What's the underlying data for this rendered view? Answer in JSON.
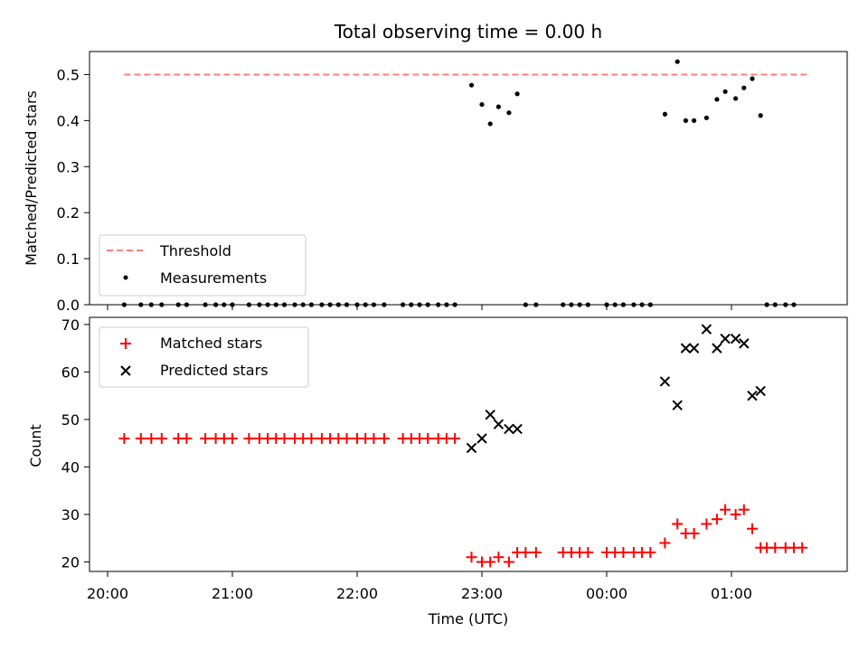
{
  "chart_data": [
    {
      "type": "scatter",
      "title": "Total observing time = 0.00 h",
      "xlabel": "",
      "ylabel": "Matched/Predicted stars",
      "ylim": [
        0,
        0.55
      ],
      "yticks": [
        "0.0",
        "0.1",
        "0.2",
        "0.3",
        "0.4",
        "0.5"
      ],
      "legend_position": "lower-left",
      "grid": false,
      "series": [
        {
          "name": "Threshold",
          "style": "dashed-line",
          "color": "#ff7f7f",
          "points": [
            [
              "20:08",
              0.5
            ],
            [
              "01:38",
              0.5
            ]
          ]
        },
        {
          "name": "Measurements",
          "style": "dot",
          "color": "#000000",
          "points": [
            [
              "20:08",
              0.0
            ],
            [
              "20:16",
              0.0
            ],
            [
              "20:21",
              0.0
            ],
            [
              "20:26",
              0.0
            ],
            [
              "20:34",
              0.0
            ],
            [
              "20:38",
              0.0
            ],
            [
              "20:47",
              0.0
            ],
            [
              "20:52",
              0.0
            ],
            [
              "20:56",
              0.0
            ],
            [
              "21:00",
              0.0
            ],
            [
              "21:08",
              0.0
            ],
            [
              "21:13",
              0.0
            ],
            [
              "21:17",
              0.0
            ],
            [
              "21:21",
              0.0
            ],
            [
              "21:25",
              0.0
            ],
            [
              "21:30",
              0.0
            ],
            [
              "21:34",
              0.0
            ],
            [
              "21:38",
              0.0
            ],
            [
              "21:43",
              0.0
            ],
            [
              "21:47",
              0.0
            ],
            [
              "21:51",
              0.0
            ],
            [
              "21:55",
              0.0
            ],
            [
              "22:00",
              0.0
            ],
            [
              "22:04",
              0.0
            ],
            [
              "22:08",
              0.0
            ],
            [
              "22:13",
              0.0
            ],
            [
              "22:22",
              0.0
            ],
            [
              "22:26",
              0.0
            ],
            [
              "22:30",
              0.0
            ],
            [
              "22:34",
              0.0
            ],
            [
              "22:39",
              0.0
            ],
            [
              "22:43",
              0.0
            ],
            [
              "22:47",
              0.0
            ],
            [
              "22:55",
              0.477
            ],
            [
              "23:00",
              0.435
            ],
            [
              "23:04",
              0.393
            ],
            [
              "23:08",
              0.43
            ],
            [
              "23:13",
              0.417
            ],
            [
              "23:17",
              0.458
            ],
            [
              "23:21",
              0.0
            ],
            [
              "23:26",
              0.0
            ],
            [
              "23:39",
              0.0
            ],
            [
              "23:43",
              0.0
            ],
            [
              "23:47",
              0.0
            ],
            [
              "23:51",
              0.0
            ],
            [
              "00:00",
              0.0
            ],
            [
              "00:04",
              0.0
            ],
            [
              "00:08",
              0.0
            ],
            [
              "00:13",
              0.0
            ],
            [
              "00:17",
              0.0
            ],
            [
              "00:21",
              0.0
            ],
            [
              "00:28",
              0.414
            ],
            [
              "00:34",
              0.528
            ],
            [
              "00:38",
              0.4
            ],
            [
              "00:42",
              0.4
            ],
            [
              "00:48",
              0.406
            ],
            [
              "00:53",
              0.446
            ],
            [
              "00:57",
              0.463
            ],
            [
              "01:02",
              0.448
            ],
            [
              "01:06",
              0.471
            ],
            [
              "01:10",
              0.491
            ],
            [
              "01:14",
              0.411
            ],
            [
              "01:17",
              0.0
            ],
            [
              "01:21",
              0.0
            ],
            [
              "01:26",
              0.0
            ],
            [
              "01:30",
              0.0
            ]
          ]
        }
      ]
    },
    {
      "type": "scatter",
      "title": "",
      "xlabel": "Time (UTC)",
      "ylabel": "Count",
      "ylim": [
        18,
        71.5
      ],
      "yticks": [
        "20",
        "30",
        "40",
        "50",
        "60",
        "70"
      ],
      "xticks": [
        "20:00",
        "21:00",
        "22:00",
        "23:00",
        "00:00",
        "01:00"
      ],
      "legend_position": "upper-left",
      "grid": false,
      "series": [
        {
          "name": "Matched stars",
          "style": "plus",
          "color": "#ff0000",
          "points": [
            [
              "20:08",
              46
            ],
            [
              "20:16",
              46
            ],
            [
              "20:21",
              46
            ],
            [
              "20:26",
              46
            ],
            [
              "20:34",
              46
            ],
            [
              "20:38",
              46
            ],
            [
              "20:47",
              46
            ],
            [
              "20:52",
              46
            ],
            [
              "20:56",
              46
            ],
            [
              "21:00",
              46
            ],
            [
              "21:08",
              46
            ],
            [
              "21:13",
              46
            ],
            [
              "21:17",
              46
            ],
            [
              "21:21",
              46
            ],
            [
              "21:25",
              46
            ],
            [
              "21:30",
              46
            ],
            [
              "21:34",
              46
            ],
            [
              "21:38",
              46
            ],
            [
              "21:43",
              46
            ],
            [
              "21:47",
              46
            ],
            [
              "21:51",
              46
            ],
            [
              "21:55",
              46
            ],
            [
              "22:00",
              46
            ],
            [
              "22:04",
              46
            ],
            [
              "22:08",
              46
            ],
            [
              "22:13",
              46
            ],
            [
              "22:22",
              46
            ],
            [
              "22:26",
              46
            ],
            [
              "22:30",
              46
            ],
            [
              "22:34",
              46
            ],
            [
              "22:39",
              46
            ],
            [
              "22:43",
              46
            ],
            [
              "22:47",
              46
            ],
            [
              "22:55",
              21
            ],
            [
              "23:00",
              20
            ],
            [
              "23:04",
              20
            ],
            [
              "23:08",
              21
            ],
            [
              "23:13",
              20
            ],
            [
              "23:17",
              22
            ],
            [
              "23:21",
              22
            ],
            [
              "23:26",
              22
            ],
            [
              "23:39",
              22
            ],
            [
              "23:43",
              22
            ],
            [
              "23:47",
              22
            ],
            [
              "23:51",
              22
            ],
            [
              "00:00",
              22
            ],
            [
              "00:04",
              22
            ],
            [
              "00:08",
              22
            ],
            [
              "00:13",
              22
            ],
            [
              "00:17",
              22
            ],
            [
              "00:21",
              22
            ],
            [
              "00:28",
              24
            ],
            [
              "00:34",
              28
            ],
            [
              "00:38",
              26
            ],
            [
              "00:42",
              26
            ],
            [
              "00:48",
              28
            ],
            [
              "00:53",
              29
            ],
            [
              "00:57",
              31
            ],
            [
              "01:02",
              30
            ],
            [
              "01:06",
              31
            ],
            [
              "01:10",
              27
            ],
            [
              "01:14",
              23
            ],
            [
              "01:17",
              23
            ],
            [
              "01:21",
              23
            ],
            [
              "01:26",
              23
            ],
            [
              "01:30",
              23
            ],
            [
              "01:34",
              23
            ]
          ]
        },
        {
          "name": "Predicted stars",
          "style": "x",
          "color": "#000000",
          "points": [
            [
              "22:55",
              44
            ],
            [
              "23:00",
              46
            ],
            [
              "23:04",
              51
            ],
            [
              "23:08",
              49
            ],
            [
              "23:13",
              48
            ],
            [
              "23:17",
              48
            ],
            [
              "00:28",
              58
            ],
            [
              "00:34",
              53
            ],
            [
              "00:38",
              65
            ],
            [
              "00:42",
              65
            ],
            [
              "00:48",
              69
            ],
            [
              "00:53",
              65
            ],
            [
              "00:57",
              67
            ],
            [
              "01:02",
              67
            ],
            [
              "01:06",
              66
            ],
            [
              "01:10",
              55
            ],
            [
              "01:14",
              56
            ]
          ]
        }
      ]
    }
  ]
}
